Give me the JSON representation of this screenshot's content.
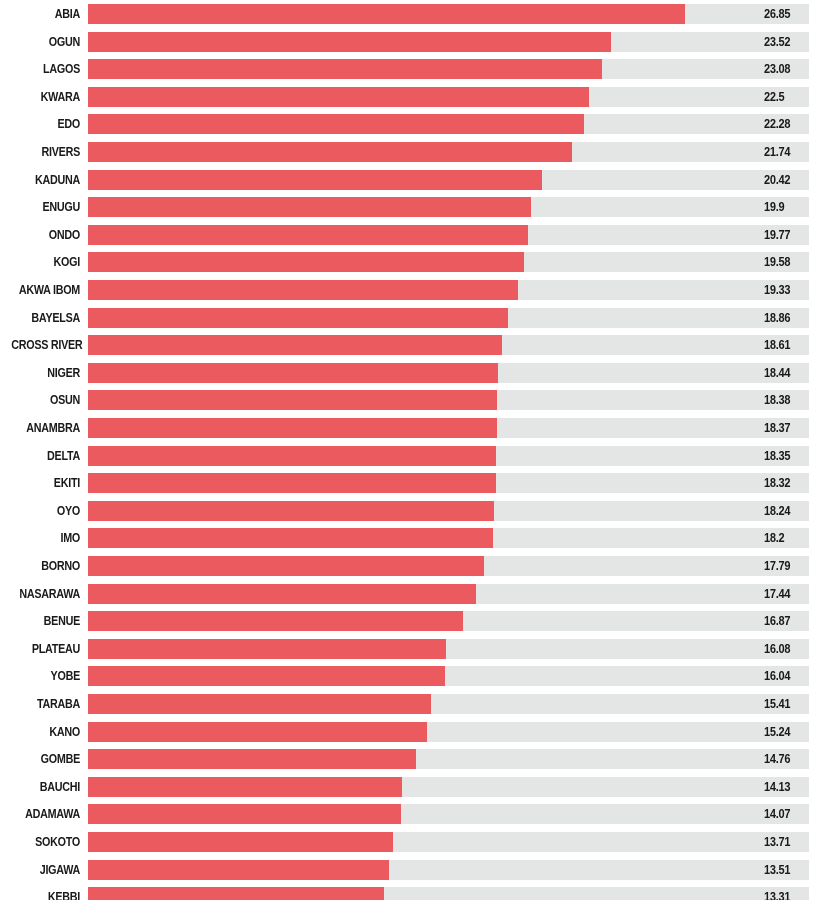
{
  "colors": {
    "bar": "#eb5a5e",
    "track": "#e4e6e6",
    "text": "#1a1a1a"
  },
  "chart_data": {
    "type": "bar",
    "orientation": "horizontal",
    "xlim": [
      0,
      32.4
    ],
    "categories": [
      "ABIA",
      "OGUN",
      "LAGOS",
      "KWARA",
      "EDO",
      "RIVERS",
      "KADUNA",
      "ENUGU",
      "ONDO",
      "KOGI",
      "AKWA IBOM",
      "BAYELSA",
      "CROSS RIVER",
      "NIGER",
      "OSUN",
      "ANAMBRA",
      "DELTA",
      "EKITI",
      "OYO",
      "IMO",
      "BORNO",
      "NASARAWA",
      "BENUE",
      "PLATEAU",
      "YOBE",
      "TARABA",
      "KANO",
      "GOMBE",
      "BAUCHI",
      "ADAMAWA",
      "SOKOTO",
      "JIGAWA",
      "KEBBI"
    ],
    "values": [
      26.85,
      23.52,
      23.08,
      22.5,
      22.28,
      21.74,
      20.42,
      19.9,
      19.77,
      19.58,
      19.33,
      18.86,
      18.61,
      18.44,
      18.38,
      18.37,
      18.35,
      18.32,
      18.24,
      18.2,
      17.79,
      17.44,
      16.87,
      16.08,
      16.04,
      15.41,
      15.24,
      14.76,
      14.13,
      14.07,
      13.71,
      13.51,
      13.31
    ],
    "value_labels": [
      "26.85",
      "23.52",
      "23.08",
      "22.5",
      "22.28",
      "21.74",
      "20.42",
      "19.9",
      "19.77",
      "19.58",
      "19.33",
      "18.86",
      "18.61",
      "18.44",
      "18.38",
      "18.37",
      "18.35",
      "18.32",
      "18.24",
      "18.2",
      "17.79",
      "17.44",
      "16.87",
      "16.08",
      "16.04",
      "15.41",
      "15.24",
      "14.76",
      "14.13",
      "14.07",
      "13.71",
      "13.51",
      "13.31"
    ]
  }
}
